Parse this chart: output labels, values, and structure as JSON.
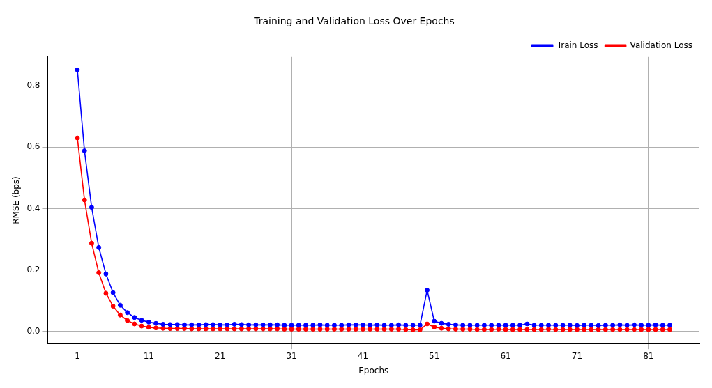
{
  "chart_data": {
    "type": "line",
    "title": "Training and Validation Loss Over Epochs",
    "xlabel": "Epochs",
    "ylabel": "RMSE (bps)",
    "x": [
      1,
      2,
      3,
      4,
      5,
      6,
      7,
      8,
      9,
      10,
      11,
      12,
      13,
      14,
      15,
      16,
      17,
      18,
      19,
      20,
      21,
      22,
      23,
      24,
      25,
      26,
      27,
      28,
      29,
      30,
      31,
      32,
      33,
      34,
      35,
      36,
      37,
      38,
      39,
      40,
      41,
      42,
      43,
      44,
      45,
      46,
      47,
      48,
      49,
      50,
      51,
      52,
      53,
      54,
      55,
      56,
      57,
      58,
      59,
      60,
      61,
      62,
      63,
      64,
      65,
      66,
      67,
      68,
      69,
      70,
      71,
      72,
      73,
      74,
      75,
      76,
      77,
      78,
      79,
      80,
      81,
      82,
      83,
      84
    ],
    "series": [
      {
        "name": "Train Loss",
        "color": "#0000ff",
        "values": [
          0.852,
          0.588,
          0.404,
          0.273,
          0.187,
          0.126,
          0.085,
          0.061,
          0.045,
          0.036,
          0.03,
          0.026,
          0.023,
          0.022,
          0.022,
          0.021,
          0.021,
          0.021,
          0.022,
          0.022,
          0.021,
          0.021,
          0.023,
          0.022,
          0.021,
          0.021,
          0.021,
          0.021,
          0.021,
          0.02,
          0.02,
          0.02,
          0.02,
          0.02,
          0.021,
          0.02,
          0.02,
          0.02,
          0.021,
          0.021,
          0.021,
          0.02,
          0.021,
          0.02,
          0.02,
          0.021,
          0.02,
          0.02,
          0.02,
          0.134,
          0.033,
          0.026,
          0.023,
          0.021,
          0.02,
          0.02,
          0.02,
          0.02,
          0.02,
          0.02,
          0.02,
          0.02,
          0.02,
          0.024,
          0.02,
          0.02,
          0.02,
          0.02,
          0.02,
          0.02,
          0.019,
          0.02,
          0.02,
          0.019,
          0.02,
          0.02,
          0.021,
          0.02,
          0.021,
          0.02,
          0.02,
          0.021,
          0.02,
          0.02
        ]
      },
      {
        "name": "Validation Loss",
        "color": "#ff0000",
        "values": [
          0.63,
          0.428,
          0.287,
          0.191,
          0.124,
          0.082,
          0.053,
          0.035,
          0.024,
          0.017,
          0.013,
          0.011,
          0.01,
          0.009,
          0.009,
          0.009,
          0.008,
          0.008,
          0.008,
          0.008,
          0.008,
          0.008,
          0.008,
          0.008,
          0.008,
          0.008,
          0.008,
          0.008,
          0.008,
          0.007,
          0.007,
          0.007,
          0.007,
          0.007,
          0.007,
          0.007,
          0.007,
          0.007,
          0.007,
          0.007,
          0.007,
          0.007,
          0.007,
          0.007,
          0.007,
          0.007,
          0.006,
          0.005,
          0.005,
          0.024,
          0.014,
          0.01,
          0.008,
          0.007,
          0.007,
          0.007,
          0.006,
          0.006,
          0.006,
          0.007,
          0.006,
          0.006,
          0.006,
          0.006,
          0.006,
          0.006,
          0.007,
          0.006,
          0.006,
          0.006,
          0.006,
          0.006,
          0.006,
          0.006,
          0.006,
          0.006,
          0.006,
          0.006,
          0.006,
          0.006,
          0.006,
          0.006,
          0.006,
          0.006
        ]
      }
    ],
    "xlim": [
      -3.15,
      88.15
    ],
    "xticks": [
      1,
      11,
      21,
      31,
      41,
      51,
      61,
      71,
      81
    ],
    "ylim": [
      -0.04,
      0.894
    ],
    "yticks": [
      {
        "value": 0,
        "label": "0.0"
      },
      {
        "value": 0.2,
        "label": "0.2"
      },
      {
        "value": 0.4,
        "label": "0.4"
      },
      {
        "value": 0.6,
        "label": "0.6"
      },
      {
        "value": 0.8,
        "label": "0.8"
      }
    ],
    "grid": true,
    "legend": "top right",
    "marker": "circle",
    "line_style": "solid"
  }
}
